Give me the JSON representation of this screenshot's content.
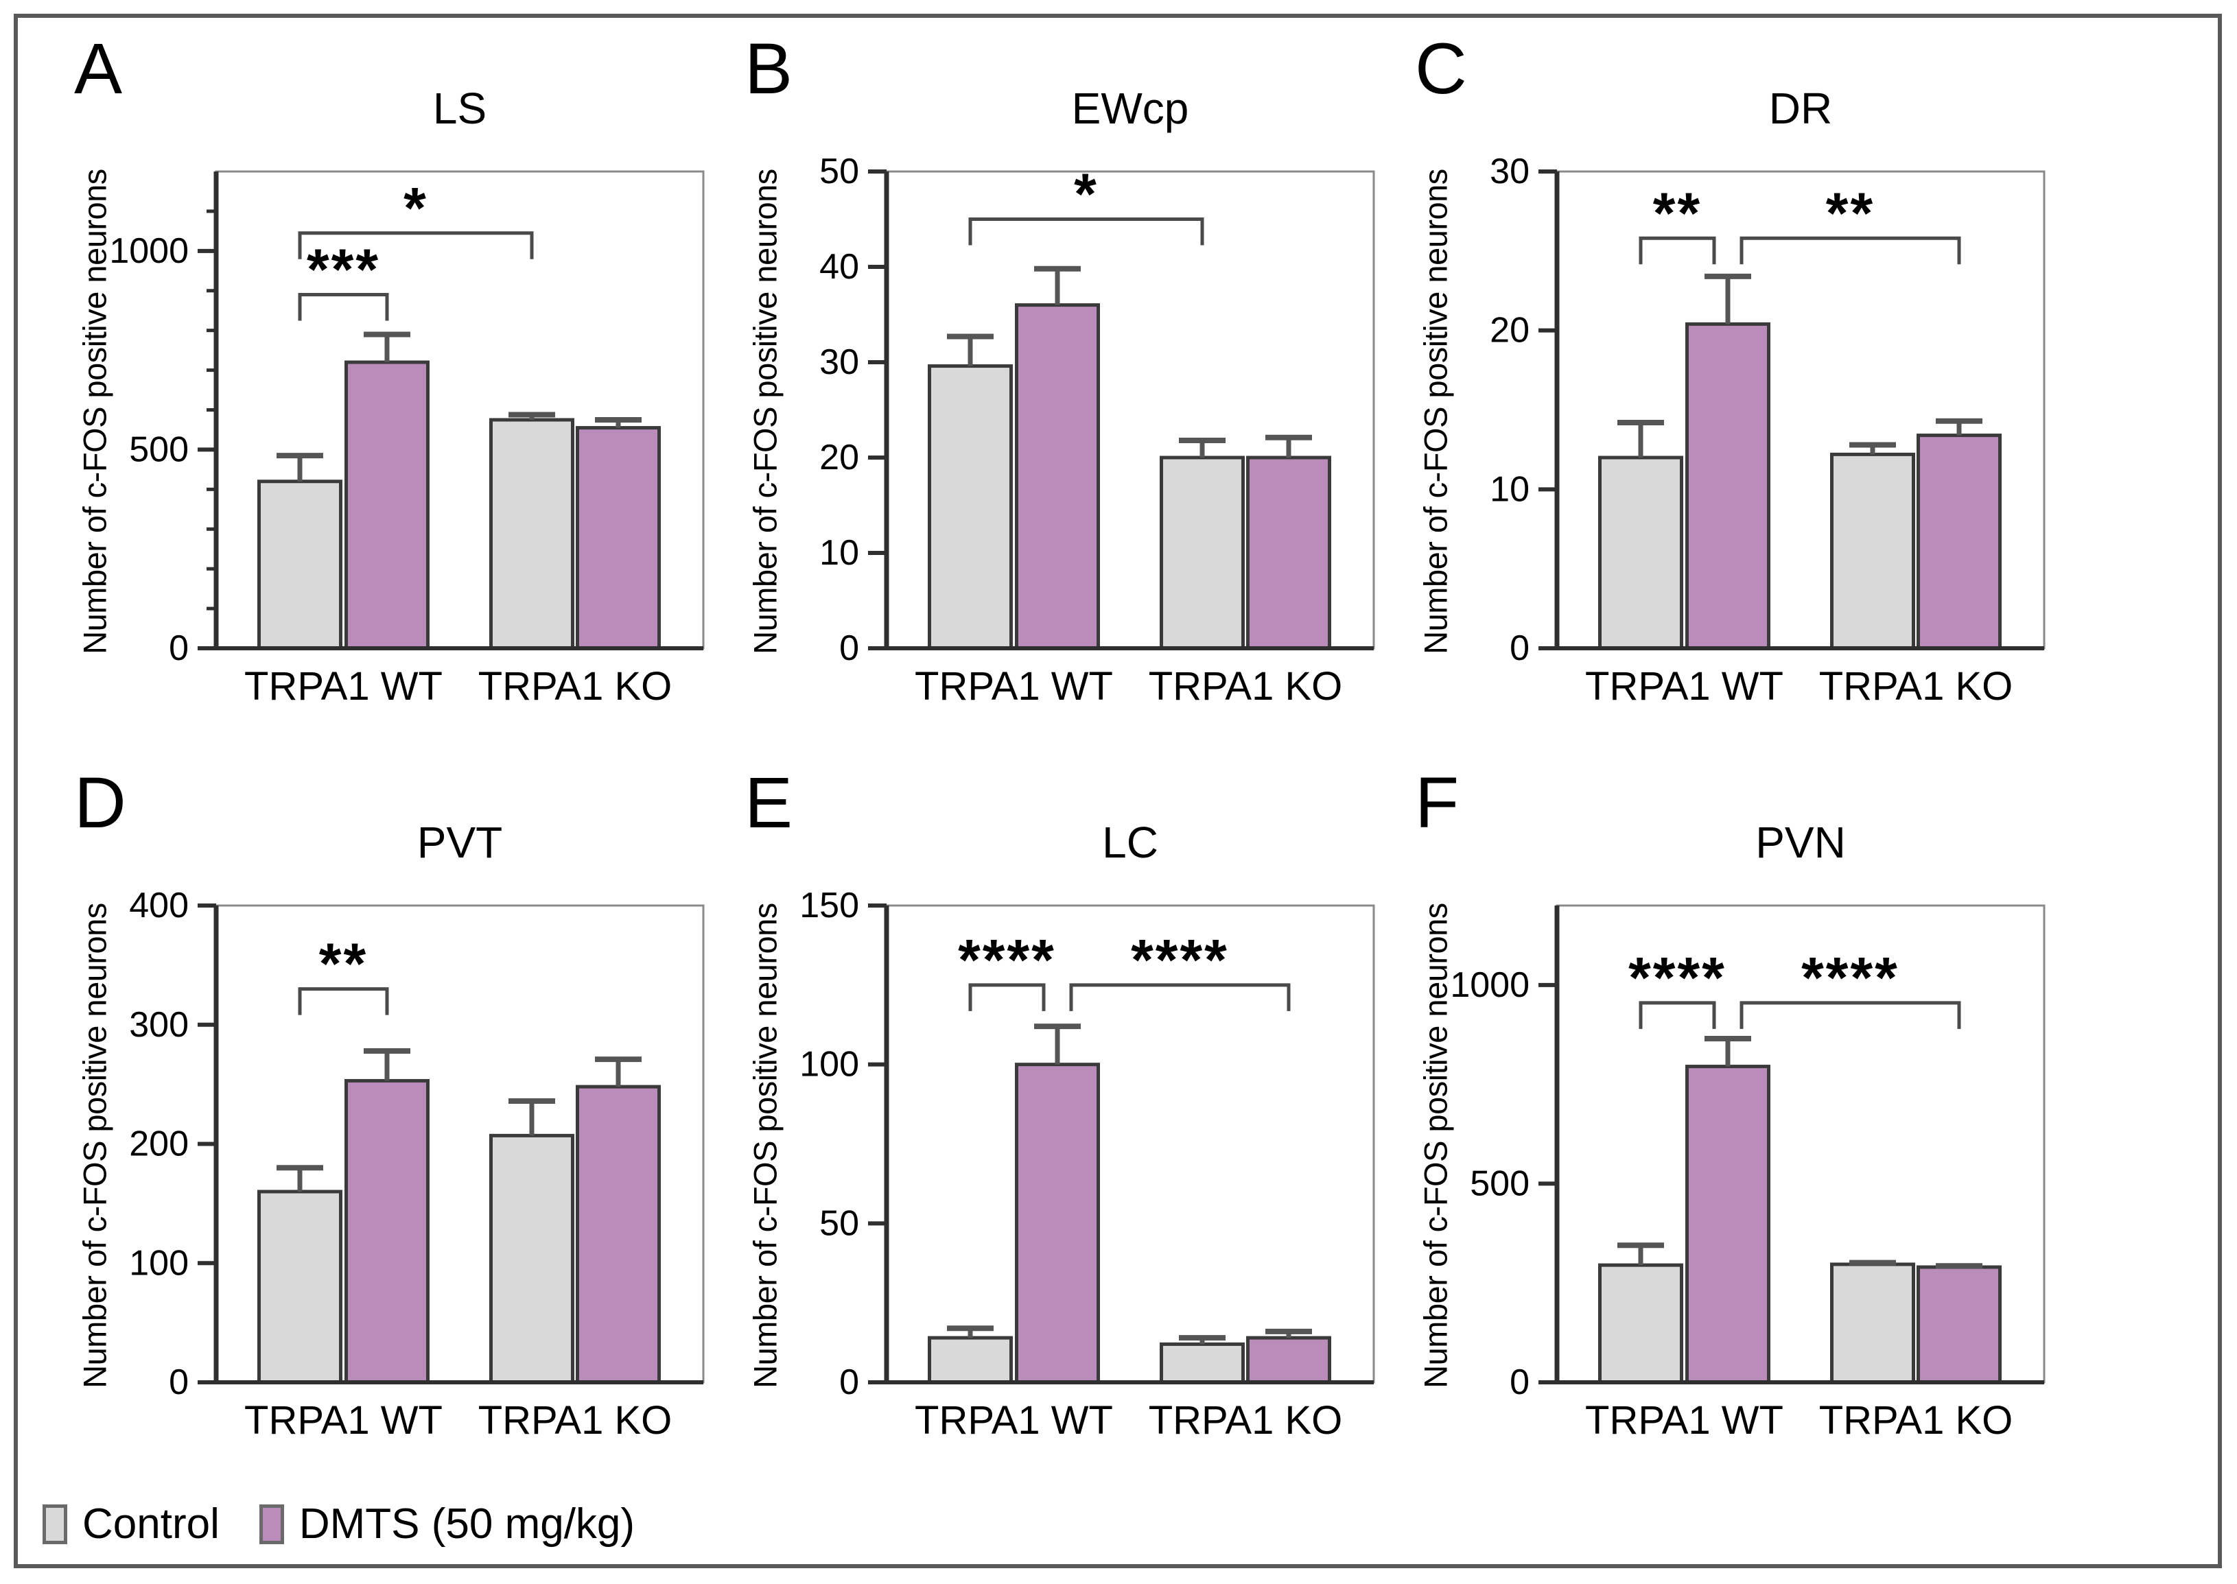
{
  "legend": [
    {
      "label": "Control",
      "color": "#d9d9d9"
    },
    {
      "label": "DMTS (50 mg/kg)",
      "color": "#ba8cba"
    }
  ],
  "style": {
    "bar_border": "#3a3a3a",
    "error_bar": "#555555",
    "axis": "#2f2f2f",
    "frame": "#8a8a8a",
    "bracket": "#4a4a4a",
    "figure_border": "#595959"
  },
  "chart_data": [
    {
      "type": "bar",
      "letter": "A",
      "title": "LS",
      "ylabel": "Number of c-FOS positive neurons",
      "ymax": 1200,
      "yticks": [
        0,
        500,
        1000
      ],
      "minor_tick_step": 100,
      "categories": [
        "TRPA1 WT",
        "TRPA1 KO"
      ],
      "bars": [
        {
          "category": "TRPA1 WT",
          "series": "Control",
          "value": 420,
          "error_top": 485
        },
        {
          "category": "TRPA1 WT",
          "series": "DMTS (50 mg/kg)",
          "value": 720,
          "error_top": 790
        },
        {
          "category": "TRPA1 KO",
          "series": "Control",
          "value": 575,
          "error_top": 588
        },
        {
          "category": "TRPA1 KO",
          "series": "DMTS (50 mg/kg)",
          "value": 555,
          "error_top": 575
        }
      ],
      "significance": [
        {
          "from_bar": 0,
          "to_bar": 1,
          "label": "***",
          "y": 890,
          "x_offsets": [
            0,
            0
          ]
        },
        {
          "from_bar": 0,
          "to_bar": 2,
          "label": "*",
          "y": 1045,
          "x_offsets": [
            0,
            0
          ]
        }
      ]
    },
    {
      "type": "bar",
      "letter": "B",
      "title": "EWcp",
      "ylabel": "Number of c-FOS positive neurons",
      "ymax": 50,
      "yticks": [
        0,
        10,
        20,
        30,
        40,
        50
      ],
      "minor_tick_step": null,
      "categories": [
        "TRPA1 WT",
        "TRPA1 KO"
      ],
      "bars": [
        {
          "category": "TRPA1 WT",
          "series": "Control",
          "value": 29.6,
          "error_top": 32.7
        },
        {
          "category": "TRPA1 WT",
          "series": "DMTS (50 mg/kg)",
          "value": 36,
          "error_top": 39.8
        },
        {
          "category": "TRPA1 KO",
          "series": "Control",
          "value": 20,
          "error_top": 21.8
        },
        {
          "category": "TRPA1 KO",
          "series": "DMTS (50 mg/kg)",
          "value": 20,
          "error_top": 22.1
        }
      ],
      "significance": [
        {
          "from_bar": 0,
          "to_bar": 2,
          "label": "*",
          "y": 45,
          "x_offsets": [
            0,
            0
          ]
        }
      ]
    },
    {
      "type": "bar",
      "letter": "C",
      "title": "DR",
      "ylabel": "Number of c-FOS positive neurons",
      "ymax": 30,
      "yticks": [
        0,
        10,
        20,
        30
      ],
      "minor_tick_step": null,
      "categories": [
        "TRPA1 WT",
        "TRPA1 KO"
      ],
      "bars": [
        {
          "category": "TRPA1 WT",
          "series": "Control",
          "value": 12,
          "error_top": 14.2
        },
        {
          "category": "TRPA1 WT",
          "series": "DMTS (50 mg/kg)",
          "value": 20.4,
          "error_top": 23.4
        },
        {
          "category": "TRPA1 KO",
          "series": "Control",
          "value": 12.2,
          "error_top": 12.8
        },
        {
          "category": "TRPA1 KO",
          "series": "DMTS (50 mg/kg)",
          "value": 13.4,
          "error_top": 14.3
        }
      ],
      "significance": [
        {
          "from_bar": 0,
          "to_bar": 1,
          "label": "**",
          "y": 25.8,
          "x_offsets": [
            0,
            -20
          ]
        },
        {
          "from_bar": 1,
          "to_bar": 3,
          "label": "**",
          "y": 25.8,
          "x_offsets": [
            20,
            0
          ]
        }
      ]
    },
    {
      "type": "bar",
      "letter": "D",
      "title": "PVT",
      "ylabel": "Number of c-FOS positive neurons",
      "ymax": 400,
      "yticks": [
        0,
        100,
        200,
        300,
        400
      ],
      "minor_tick_step": null,
      "categories": [
        "TRPA1 WT",
        "TRPA1 KO"
      ],
      "bars": [
        {
          "category": "TRPA1 WT",
          "series": "Control",
          "value": 160,
          "error_top": 180
        },
        {
          "category": "TRPA1 WT",
          "series": "DMTS (50 mg/kg)",
          "value": 253,
          "error_top": 278
        },
        {
          "category": "TRPA1 KO",
          "series": "Control",
          "value": 207,
          "error_top": 236
        },
        {
          "category": "TRPA1 KO",
          "series": "DMTS (50 mg/kg)",
          "value": 248,
          "error_top": 271
        }
      ],
      "significance": [
        {
          "from_bar": 0,
          "to_bar": 1,
          "label": "**",
          "y": 330,
          "x_offsets": [
            0,
            0
          ]
        }
      ]
    },
    {
      "type": "bar",
      "letter": "E",
      "title": "LC",
      "ylabel": "Number of c-FOS positive neurons",
      "ymax": 150,
      "yticks": [
        0,
        50,
        100,
        150
      ],
      "minor_tick_step": null,
      "categories": [
        "TRPA1 WT",
        "TRPA1 KO"
      ],
      "bars": [
        {
          "category": "TRPA1 WT",
          "series": "Control",
          "value": 14,
          "error_top": 17
        },
        {
          "category": "TRPA1 WT",
          "series": "DMTS (50 mg/kg)",
          "value": 100,
          "error_top": 112
        },
        {
          "category": "TRPA1 KO",
          "series": "Control",
          "value": 12,
          "error_top": 14
        },
        {
          "category": "TRPA1 KO",
          "series": "DMTS (50 mg/kg)",
          "value": 14,
          "error_top": 16
        }
      ],
      "significance": [
        {
          "from_bar": 0,
          "to_bar": 1,
          "label": "****",
          "y": 125,
          "x_offsets": [
            0,
            -20
          ]
        },
        {
          "from_bar": 1,
          "to_bar": 3,
          "label": "****",
          "y": 125,
          "x_offsets": [
            20,
            0
          ]
        }
      ]
    },
    {
      "type": "bar",
      "letter": "F",
      "title": "PVN",
      "ylabel": "Number of c-FOS positive neurons",
      "ymax": 1200,
      "yticks": [
        0,
        500,
        1000
      ],
      "minor_tick_step": null,
      "categories": [
        "TRPA1 WT",
        "TRPA1 KO"
      ],
      "bars": [
        {
          "category": "TRPA1 WT",
          "series": "Control",
          "value": 295,
          "error_top": 345
        },
        {
          "category": "TRPA1 WT",
          "series": "DMTS (50 mg/kg)",
          "value": 795,
          "error_top": 865
        },
        {
          "category": "TRPA1 KO",
          "series": "Control",
          "value": 297,
          "error_top": 301
        },
        {
          "category": "TRPA1 KO",
          "series": "DMTS (50 mg/kg)",
          "value": 290,
          "error_top": 293
        }
      ],
      "significance": [
        {
          "from_bar": 0,
          "to_bar": 1,
          "label": "****",
          "y": 955,
          "x_offsets": [
            0,
            -20
          ]
        },
        {
          "from_bar": 1,
          "to_bar": 3,
          "label": "****",
          "y": 955,
          "x_offsets": [
            20,
            0
          ]
        }
      ]
    }
  ]
}
